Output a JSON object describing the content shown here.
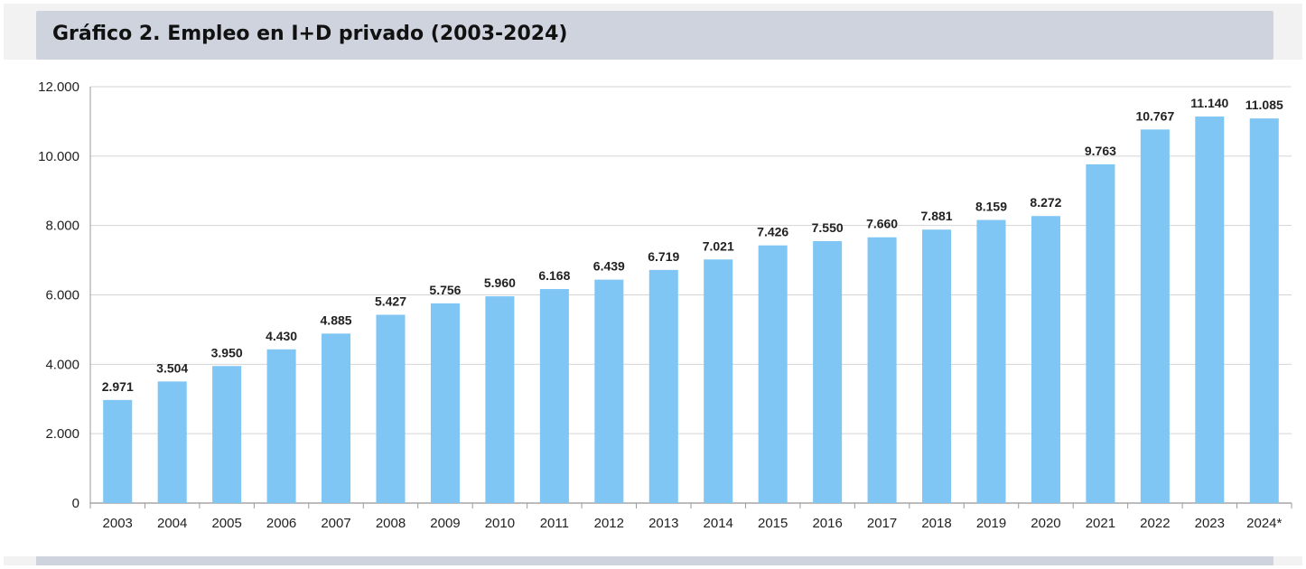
{
  "chart_data": {
    "type": "bar",
    "title": "Gráfico 2. Empleo en I+D privado (2003-2024)",
    "xlabel": "",
    "ylabel": "",
    "categories": [
      "2003",
      "2004",
      "2005",
      "2006",
      "2007",
      "2008",
      "2009",
      "2010",
      "2011",
      "2012",
      "2013",
      "2014",
      "2015",
      "2016",
      "2017",
      "2018",
      "2019",
      "2020",
      "2021",
      "2022",
      "2023",
      "2024*"
    ],
    "values": [
      2971,
      3504,
      3950,
      4430,
      4885,
      5427,
      5756,
      5960,
      6168,
      6439,
      6719,
      7021,
      7426,
      7550,
      7660,
      7881,
      8159,
      8272,
      9763,
      10767,
      11140,
      11085
    ],
    "value_labels": [
      "2.971",
      "3.504",
      "3.950",
      "4.430",
      "4.885",
      "5.427",
      "5.756",
      "5.960",
      "6.168",
      "6.439",
      "6.719",
      "7.021",
      "7.426",
      "7.550",
      "7.660",
      "7.881",
      "8.159",
      "8.272",
      "9.763",
      "10.767",
      "11.140",
      "11.085"
    ],
    "ylim": [
      0,
      12000
    ],
    "yticks": [
      0,
      2000,
      4000,
      6000,
      8000,
      10000,
      12000
    ],
    "ytick_labels": [
      "0",
      "2.000",
      "4.000",
      "6.000",
      "8.000",
      "10.000",
      "12.000"
    ],
    "grid": true,
    "bar_color": "#7fc6f5"
  }
}
